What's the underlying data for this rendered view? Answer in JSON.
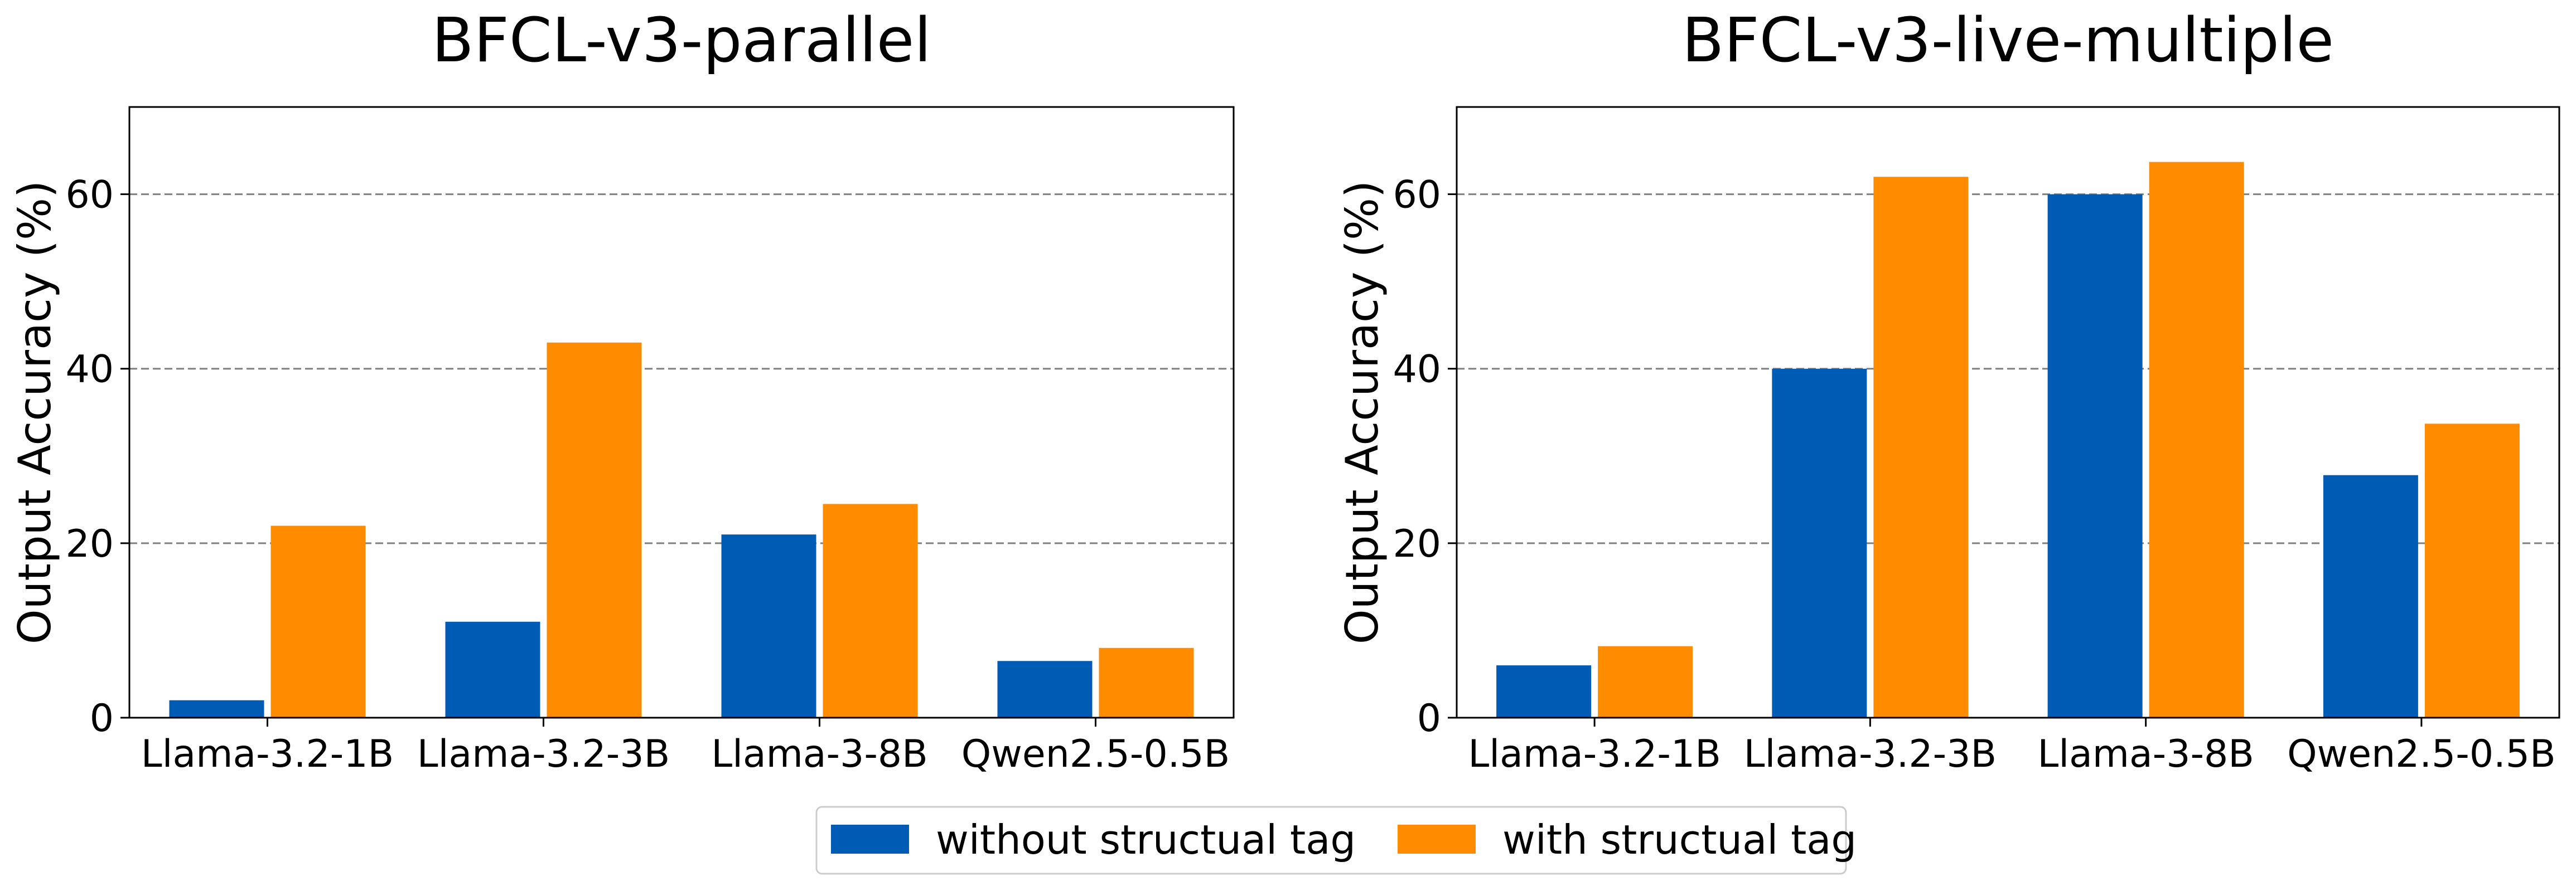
{
  "colors": {
    "without": "#005bb5",
    "with": "#ff8c00",
    "grid": "#808080"
  },
  "legend": {
    "items": [
      {
        "label": "without structual tag",
        "color_key": "without"
      },
      {
        "label": "with structual tag",
        "color_key": "with"
      }
    ],
    "placement": "bottom-center"
  },
  "chart_data": [
    {
      "type": "bar",
      "title": "BFCL-v3-parallel",
      "xlabel": "",
      "ylabel": "Output Accuracy (%)",
      "categories": [
        "Llama-3.2-1B",
        "Llama-3.2-3B",
        "Llama-3-8B",
        "Qwen2.5-0.5B"
      ],
      "series": [
        {
          "name": "without structual tag",
          "values": [
            2,
            11,
            21,
            6.5
          ]
        },
        {
          "name": "with structual tag",
          "values": [
            22,
            43,
            24.5,
            8
          ]
        }
      ],
      "ylim": [
        0,
        70
      ],
      "yticks": [
        0,
        20,
        40,
        60
      ],
      "grid": "horizontal-dashed"
    },
    {
      "type": "bar",
      "title": "BFCL-v3-live-multiple",
      "xlabel": "",
      "ylabel": "Output Accuracy (%)",
      "categories": [
        "Llama-3.2-1B",
        "Llama-3.2-3B",
        "Llama-3-8B",
        "Qwen2.5-0.5B"
      ],
      "series": [
        {
          "name": "without structual tag",
          "values": [
            6,
            40,
            60,
            27.8
          ]
        },
        {
          "name": "with structual tag",
          "values": [
            8.2,
            62,
            63.7,
            33.7
          ]
        }
      ],
      "ylim": [
        0,
        70
      ],
      "yticks": [
        0,
        20,
        40,
        60
      ],
      "grid": "horizontal-dashed"
    }
  ]
}
